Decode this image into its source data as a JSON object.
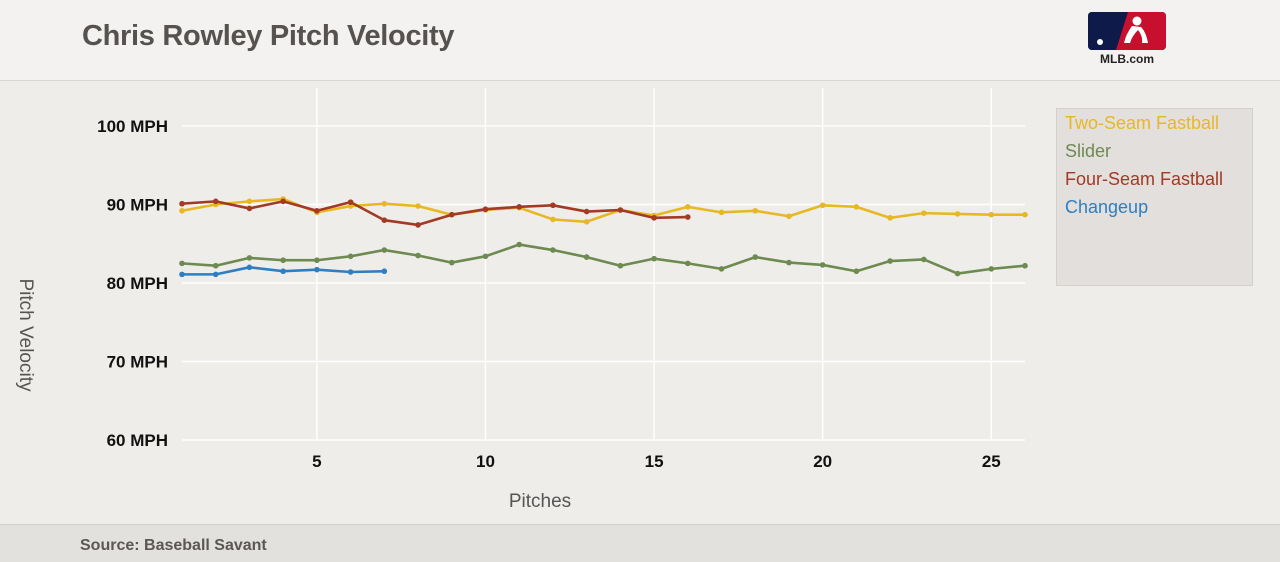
{
  "header": {
    "title": "Chris Rowley Pitch Velocity",
    "logo_text": "MLB.com"
  },
  "footer": {
    "source": "Source: Baseball Savant"
  },
  "chart_data": {
    "type": "line",
    "title": "Chris Rowley Pitch Velocity",
    "xlabel": "Pitches",
    "ylabel": "Pitch Velocity",
    "xlim": [
      1,
      26
    ],
    "ylim": [
      60,
      100
    ],
    "x_ticks": [
      5,
      10,
      15,
      20,
      25
    ],
    "x_tick_labels": [
      "5",
      "10",
      "15",
      "20",
      "25"
    ],
    "y_ticks": [
      60,
      70,
      80,
      90,
      100
    ],
    "y_tick_labels": [
      "60 MPH",
      "70 MPH",
      "80 MPH",
      "90 MPH",
      "100 MPH"
    ],
    "grid": true,
    "legend_position": "right",
    "series": [
      {
        "name": "Two-Seam Fastball",
        "color": "#e8b824",
        "x": [
          1,
          2,
          3,
          4,
          5,
          6,
          7,
          8,
          9,
          10,
          11,
          12,
          13,
          14,
          15,
          16,
          17,
          18,
          19,
          20,
          21,
          22,
          23,
          24,
          25,
          26
        ],
        "values": [
          89.2,
          90.0,
          90.4,
          90.7,
          89.0,
          89.8,
          90.1,
          89.8,
          88.7,
          89.3,
          89.6,
          88.1,
          87.8,
          89.3,
          88.6,
          89.7,
          89.0,
          89.2,
          88.5,
          89.9,
          89.7,
          88.3,
          88.9,
          88.8,
          88.7,
          88.7
        ]
      },
      {
        "name": "Slider",
        "color": "#6d8a51",
        "x": [
          1,
          2,
          3,
          4,
          5,
          6,
          7,
          8,
          9,
          10,
          11,
          12,
          13,
          14,
          15,
          16,
          17,
          18,
          19,
          20,
          21,
          22,
          23,
          24,
          25,
          26
        ],
        "values": [
          82.5,
          82.2,
          83.2,
          82.9,
          82.9,
          83.4,
          84.2,
          83.5,
          82.6,
          83.4,
          84.9,
          84.2,
          83.3,
          82.2,
          83.1,
          82.5,
          81.8,
          83.3,
          82.6,
          82.3,
          81.5,
          82.8,
          83.0,
          81.2,
          81.8,
          82.2
        ]
      },
      {
        "name": "Four-Seam Fastball",
        "color": "#a23a24",
        "x": [
          1,
          2,
          3,
          4,
          5,
          6,
          7,
          8,
          9,
          10,
          11,
          12,
          13,
          14,
          15,
          16
        ],
        "values": [
          90.1,
          90.4,
          89.5,
          90.4,
          89.2,
          90.3,
          88.0,
          87.4,
          88.7,
          89.4,
          89.7,
          89.9,
          89.1,
          89.3,
          88.3,
          88.4
        ]
      },
      {
        "name": "Changeup",
        "color": "#2e7fc2",
        "x": [
          1,
          2,
          3,
          4,
          5,
          6,
          7
        ],
        "values": [
          81.1,
          81.1,
          82.0,
          81.5,
          81.7,
          81.4,
          81.5
        ]
      }
    ]
  }
}
